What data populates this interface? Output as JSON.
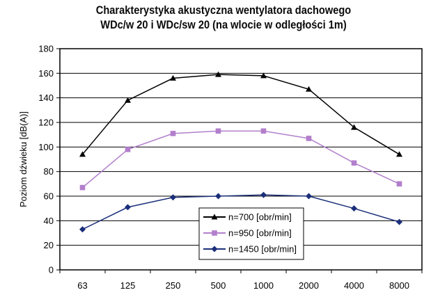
{
  "chart_data": {
    "type": "line",
    "title_line1": "Charakterystyka akustyczna  wentylatora dachowego",
    "title_line2": "WDc/w 20 i WDc/sw 20 (na wlocie w odległości 1m)",
    "xlabel": "",
    "ylabel": "Poziom dźwieku [dB(A)]",
    "categories": [
      "63",
      "125",
      "250",
      "500",
      "1000",
      "2000",
      "4000",
      "8000"
    ],
    "ylim": [
      0,
      180
    ],
    "yticks": [
      "0",
      "20",
      "40",
      "60",
      "80",
      "100",
      "120",
      "140",
      "160",
      "180"
    ],
    "grid": "horizontal",
    "legend_position": "bottom-center",
    "series": [
      {
        "name": "n=700 [obr/min]",
        "color": "#000000",
        "marker": "triangle",
        "values": [
          94,
          138,
          156,
          159,
          158,
          147,
          116,
          94
        ]
      },
      {
        "name": "n=950 [obr/min]",
        "color": "#b27fcc",
        "marker": "square",
        "values": [
          67,
          98,
          111,
          113,
          113,
          107,
          87,
          70
        ]
      },
      {
        "name": "n=1450 [obr/min]",
        "color": "#1b2f7a",
        "marker": "diamond",
        "values": [
          33,
          51,
          59,
          60,
          61,
          60,
          50,
          39
        ]
      }
    ]
  }
}
